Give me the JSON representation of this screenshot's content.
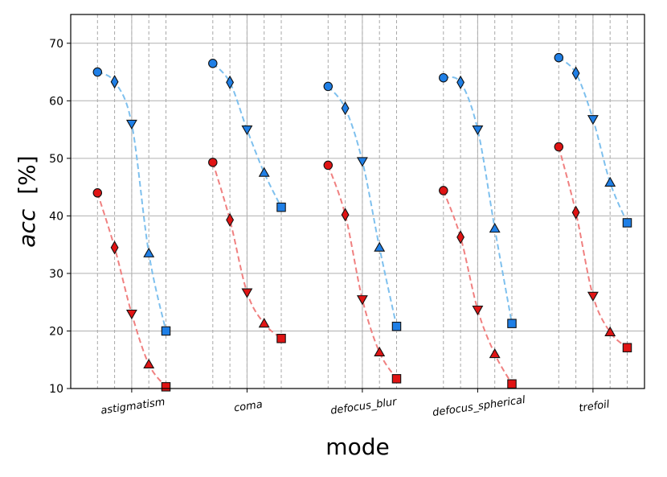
{
  "chart_data": {
    "type": "line",
    "xlabel": "mode",
    "ylabel_var": "acc",
    "ylabel_unit": "[%]",
    "ylim": [
      10,
      75
    ],
    "yticks": [
      10,
      20,
      30,
      40,
      50,
      60,
      70
    ],
    "grid": true,
    "categories": [
      "astigmatism",
      "coma",
      "defocus_blur",
      "defocus_spherical",
      "trefoil"
    ],
    "markers": [
      "circle",
      "diamond",
      "triangle-down",
      "triangle-up",
      "square"
    ],
    "series": [
      {
        "color": "#1f7fe6",
        "line_color": "#7ec0ee",
        "values": [
          [
            65.0,
            63.3,
            56.0,
            33.5,
            20.0
          ],
          [
            66.5,
            63.2,
            55.0,
            47.5,
            41.5
          ],
          [
            62.5,
            58.7,
            49.5,
            34.5,
            20.8
          ],
          [
            64.0,
            63.2,
            55.0,
            37.8,
            21.3
          ],
          [
            67.5,
            64.8,
            56.8,
            45.8,
            38.8
          ]
        ]
      },
      {
        "color": "#e01414",
        "line_color": "#f08080",
        "values": [
          [
            44.0,
            34.5,
            23.0,
            14.2,
            10.3
          ],
          [
            49.3,
            39.3,
            26.7,
            21.3,
            18.7
          ],
          [
            48.8,
            40.2,
            25.5,
            16.3,
            11.7
          ],
          [
            44.4,
            36.3,
            23.7,
            16.0,
            10.8
          ],
          [
            52.0,
            40.6,
            26.1,
            19.8,
            17.1
          ]
        ]
      }
    ]
  }
}
